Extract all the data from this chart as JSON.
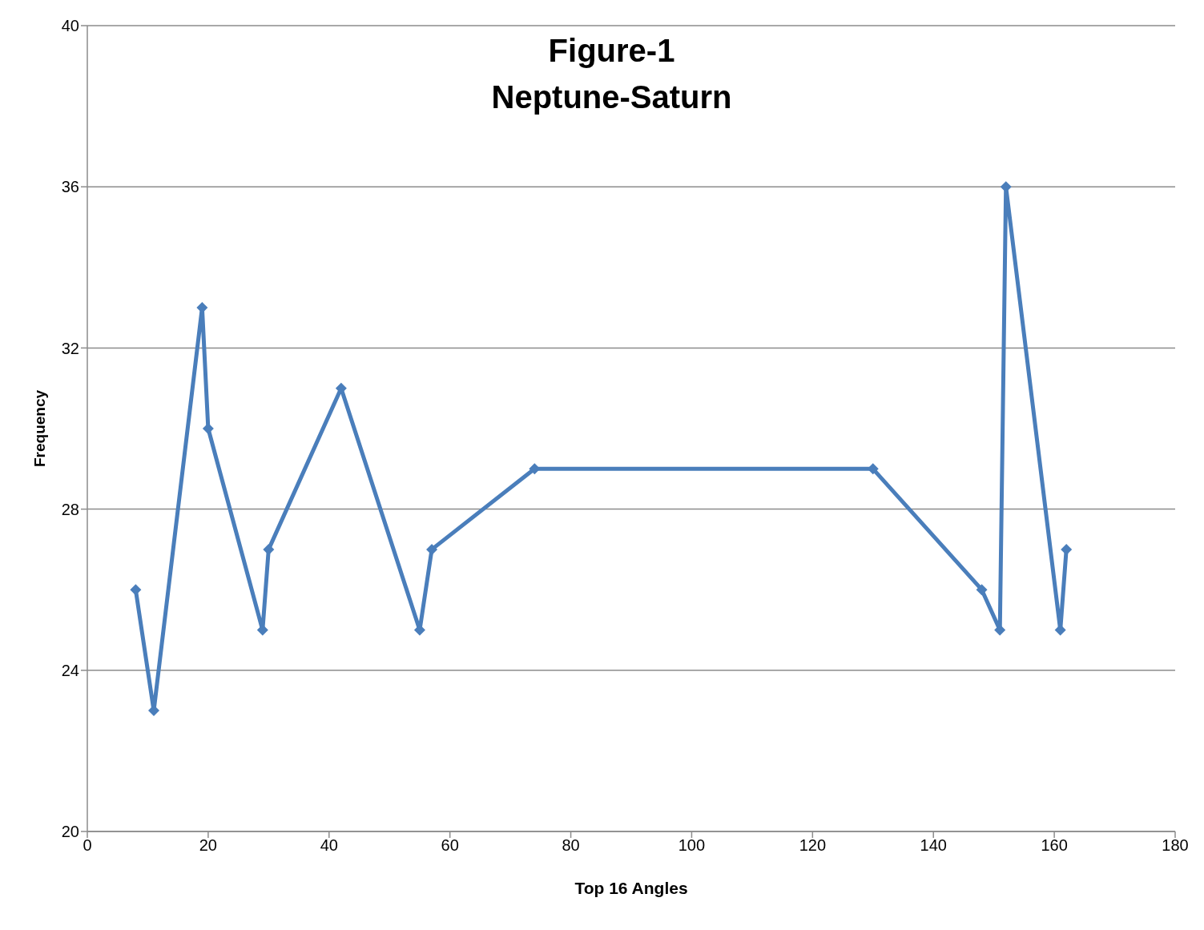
{
  "chart_data": {
    "type": "line",
    "title": "Figure-1",
    "subtitle": "Neptune-Saturn",
    "xlabel": "Top 16 Angles",
    "ylabel": "Frequency",
    "x": [
      8,
      11,
      19,
      20,
      29,
      30,
      42,
      55,
      57,
      74,
      130,
      148,
      151,
      152,
      161,
      162
    ],
    "series": [
      {
        "color": "#4a7ebb",
        "values": [
          26,
          23,
          33,
          30,
          25,
          27,
          31,
          25,
          27,
          29,
          29,
          26,
          25,
          36,
          25,
          27
        ]
      }
    ],
    "xlim": [
      0,
      180
    ],
    "xticks": [
      0,
      20,
      40,
      60,
      80,
      100,
      120,
      140,
      160,
      180
    ],
    "ylim": [
      20,
      40
    ],
    "yticks": [
      20,
      24,
      28,
      32,
      36,
      40
    ],
    "grid": "y",
    "marker": "diamond",
    "line_style": "solid",
    "legend": false
  }
}
